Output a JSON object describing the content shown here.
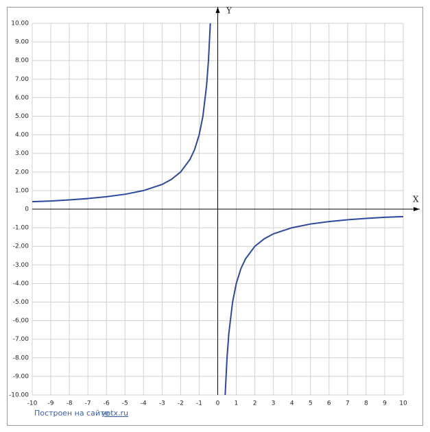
{
  "chart_data": {
    "type": "line",
    "x_label": "X",
    "y_label": "Y",
    "x": [
      -10,
      -9,
      -8,
      -7,
      -6,
      -5,
      -4,
      -3,
      -2.5,
      -2,
      -1.5,
      -1.25,
      -1,
      -0.8,
      -0.6,
      -0.5,
      -0.4,
      null,
      0.4,
      0.5,
      0.6,
      0.8,
      1,
      1.25,
      1.5,
      2,
      2.5,
      3,
      4,
      5,
      6,
      7,
      8,
      9,
      10
    ],
    "values": [
      0.4,
      0.44,
      0.5,
      0.57,
      0.67,
      0.8,
      1,
      1.33,
      1.6,
      2,
      2.67,
      3.2,
      4,
      5,
      6.67,
      8,
      10,
      null,
      -10,
      -8,
      -6.67,
      -5,
      -4,
      -3.2,
      -2.67,
      -2,
      -1.6,
      -1.33,
      -1,
      -0.8,
      -0.67,
      -0.57,
      -0.5,
      -0.44,
      -0.4
    ],
    "color": "#2b48a0",
    "xlim": [
      -10,
      10
    ],
    "ylim": [
      -10,
      10
    ],
    "xticks": [
      -10,
      -9,
      -8,
      -7,
      -6,
      -5,
      -4,
      -3,
      -2,
      -1,
      0,
      1,
      2,
      3,
      4,
      5,
      6,
      7,
      8,
      9,
      10
    ],
    "yticks": [
      {
        "value": 10,
        "label": "10.00"
      },
      {
        "value": 9,
        "label": "9.00"
      },
      {
        "value": 8,
        "label": "8.00"
      },
      {
        "value": 7,
        "label": "7.00"
      },
      {
        "value": 6,
        "label": "6.00"
      },
      {
        "value": 5,
        "label": "5.00"
      },
      {
        "value": 4,
        "label": "4.00"
      },
      {
        "value": 3,
        "label": "3.00"
      },
      {
        "value": 2,
        "label": "2.00"
      },
      {
        "value": 1,
        "label": "1.00"
      },
      0,
      {
        "value": -1,
        "label": "-1.00"
      },
      {
        "value": -2,
        "label": "-2.00"
      },
      {
        "value": -3,
        "label": "-3.00"
      },
      {
        "value": -4,
        "label": "-4.00"
      },
      {
        "value": -5,
        "label": "-5.00"
      },
      {
        "value": -6,
        "label": "-6.00"
      },
      {
        "value": -7,
        "label": "-7.00"
      },
      {
        "value": -8,
        "label": "-8.00"
      },
      {
        "value": -9,
        "label": "-9.00"
      },
      {
        "value": -10,
        "label": "-10.00"
      }
    ],
    "grid": true,
    "footer": {
      "text": "Построен на сайте",
      "link": "yotx.ru"
    }
  }
}
